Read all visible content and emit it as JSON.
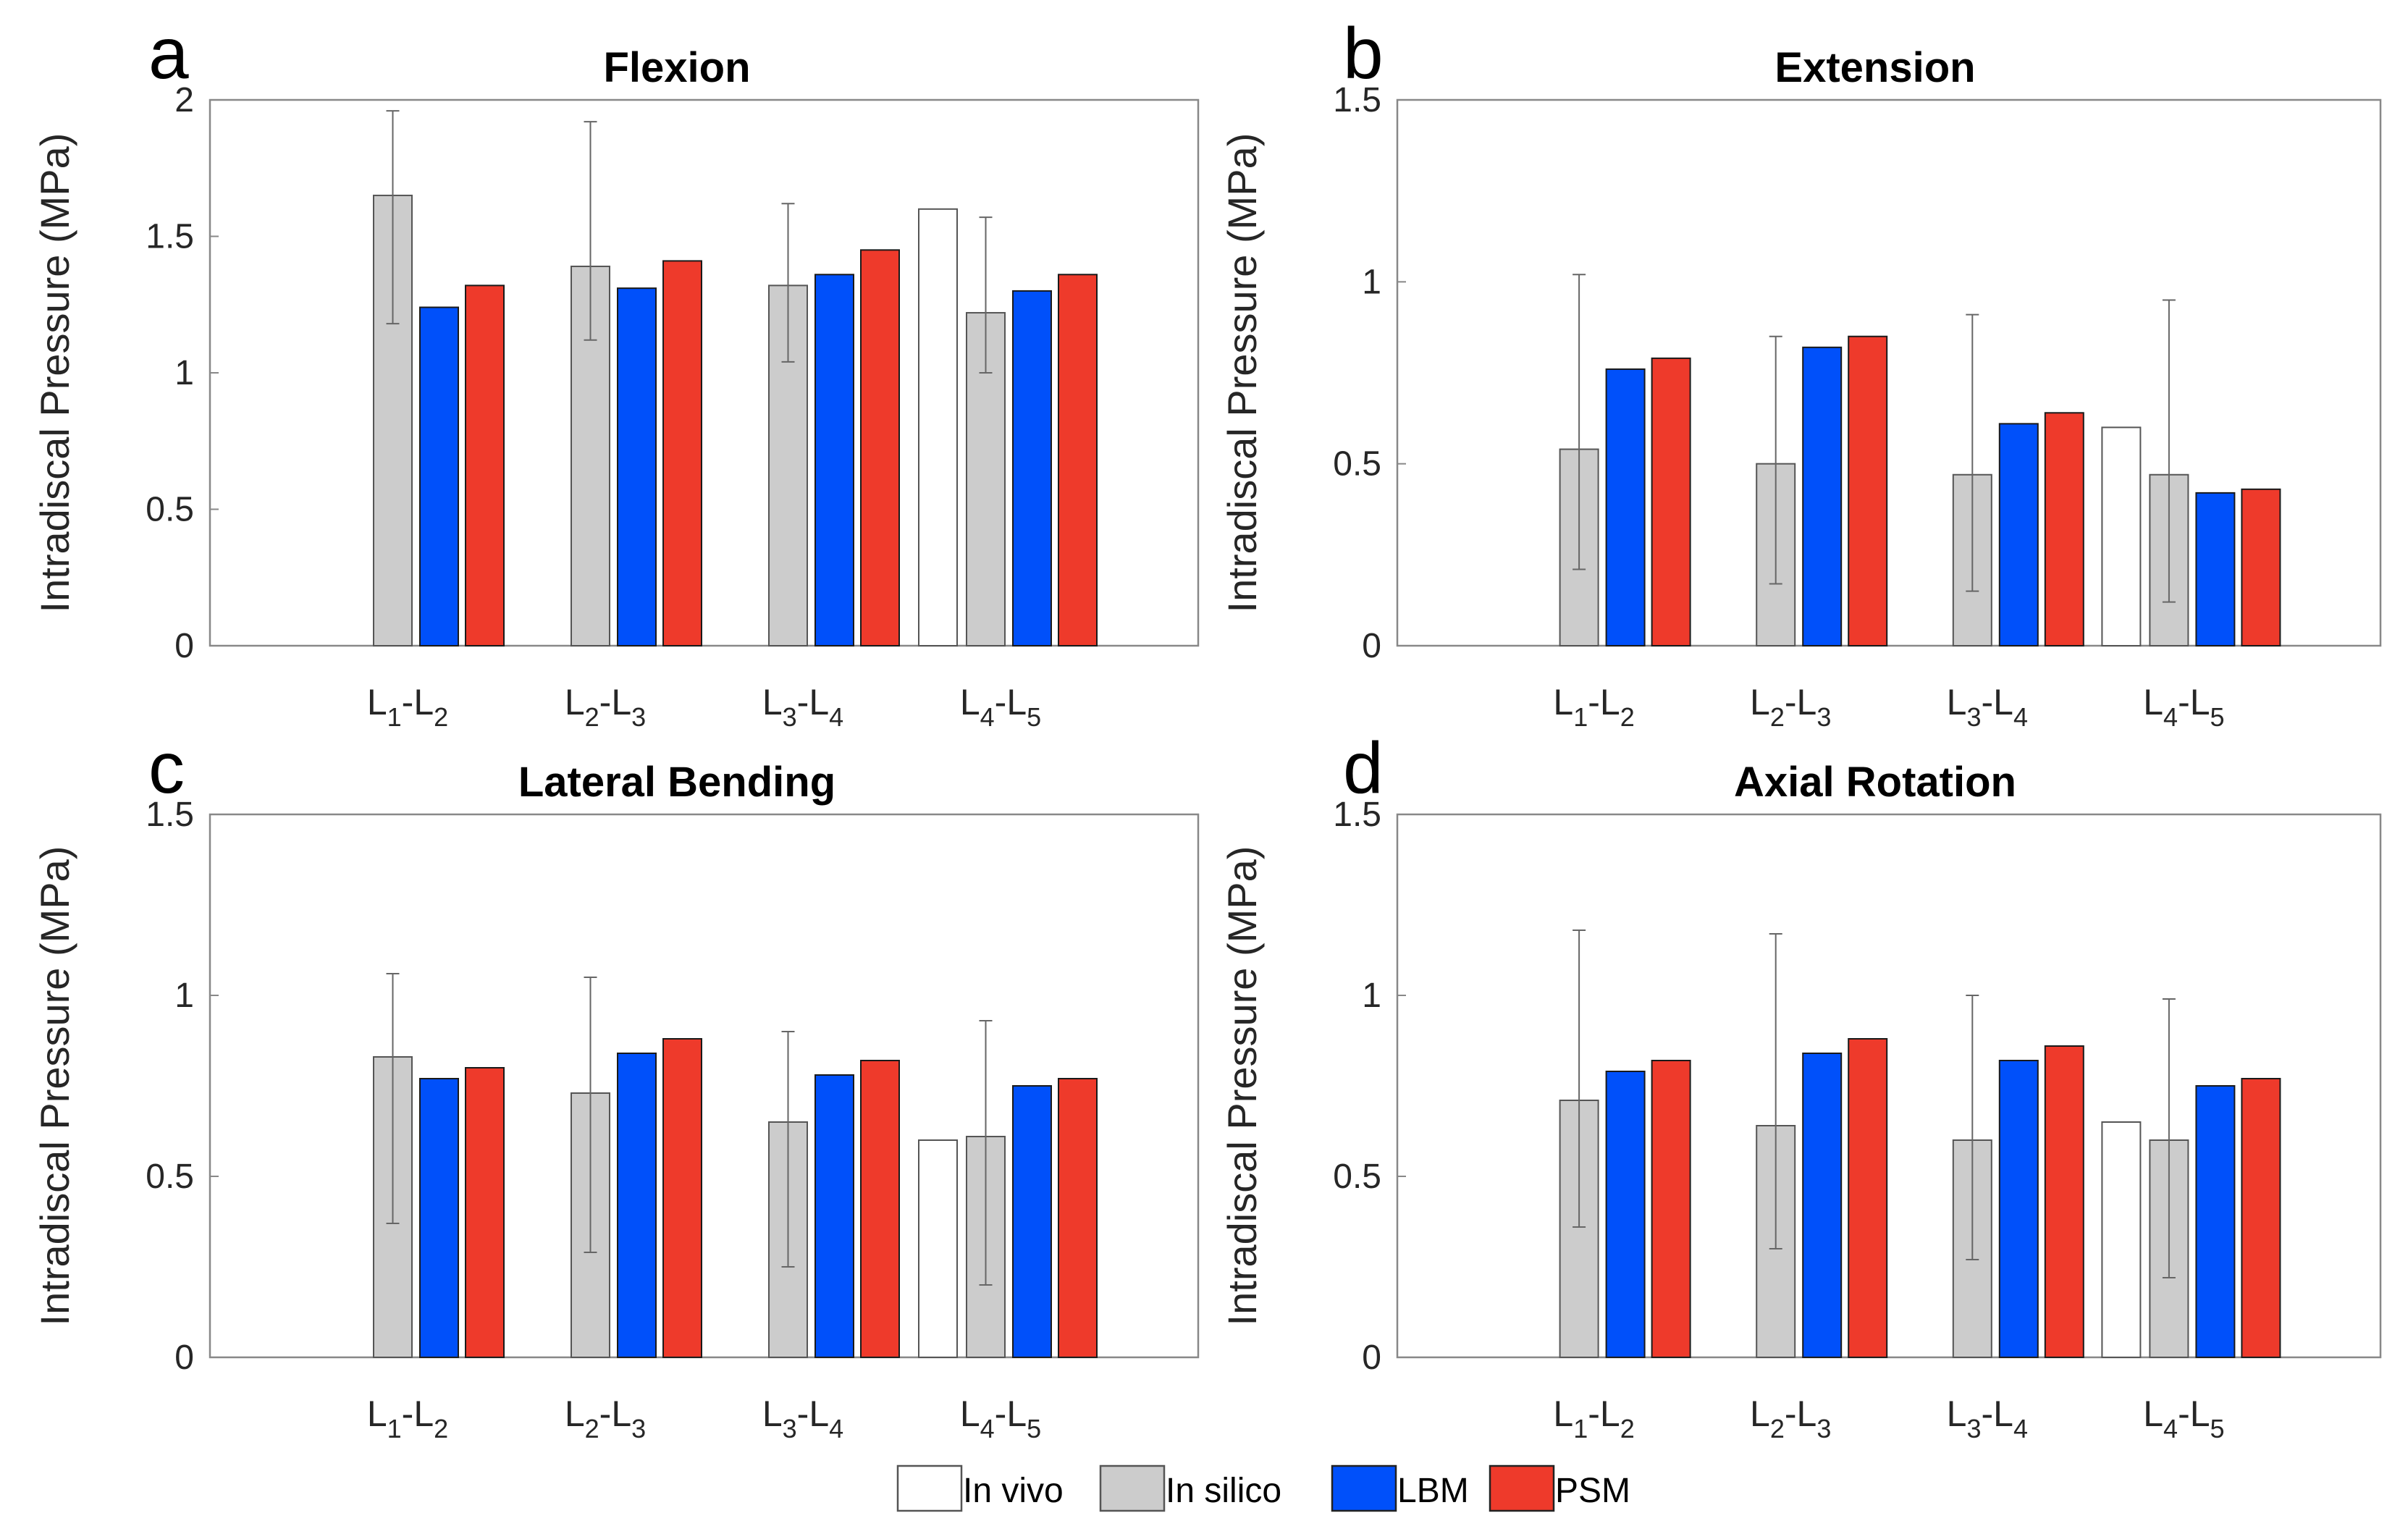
{
  "figure": {
    "ylabel": "Intradiscal Pressure (MPa)"
  },
  "legend": [
    {
      "name": "In vivo",
      "color": "#ffffff"
    },
    {
      "name": "In silico",
      "color": "#cccccc"
    },
    {
      "name": "LBM",
      "color": "#0050fa"
    },
    {
      "name": "PSM",
      "color": "#ee3a2b"
    }
  ],
  "chart_data": [
    {
      "panel_label": "a",
      "type": "bar",
      "title": "Flexion",
      "ylabel": "Intradiscal Pressure (MPa)",
      "ylim": [
        0,
        2
      ],
      "yticks": [
        0,
        0.5,
        1,
        1.5,
        2
      ],
      "ytick_labels": [
        "0",
        "0.5",
        "1",
        "1.5",
        "2"
      ],
      "categories": [
        {
          "letter": "L",
          "sub1": "1",
          "sep": "-",
          "sub2": "2"
        },
        {
          "letter": "L",
          "sub1": "2",
          "sep": "-",
          "sub2": "3"
        },
        {
          "letter": "L",
          "sub1": "3",
          "sep": "-",
          "sub2": "4"
        },
        {
          "letter": "L",
          "sub1": "4",
          "sep": "-",
          "sub2": "5"
        }
      ],
      "series": [
        {
          "name": "In vivo",
          "values": [
            null,
            null,
            null,
            1.6
          ]
        },
        {
          "name": "In silico",
          "values": [
            1.65,
            1.39,
            1.32,
            1.22
          ],
          "error_high": [
            1.96,
            1.92,
            1.62,
            1.57
          ],
          "error_low": [
            1.18,
            1.12,
            1.04,
            1.0
          ]
        },
        {
          "name": "LBM",
          "values": [
            1.24,
            1.31,
            1.36,
            1.3
          ]
        },
        {
          "name": "PSM",
          "values": [
            1.32,
            1.41,
            1.45,
            1.36
          ]
        }
      ]
    },
    {
      "panel_label": "b",
      "type": "bar",
      "title": "Extension",
      "ylabel": "Intradiscal Pressure (MPa)",
      "ylim": [
        0,
        1.5
      ],
      "yticks": [
        0,
        0.5,
        1,
        1.5
      ],
      "ytick_labels": [
        "0",
        "0.5",
        "1",
        "1.5"
      ],
      "categories": [
        {
          "letter": "L",
          "sub1": "1",
          "sep": "-",
          "sub2": "2"
        },
        {
          "letter": "L",
          "sub1": "2",
          "sep": "-",
          "sub2": "3"
        },
        {
          "letter": "L",
          "sub1": "3",
          "sep": "-",
          "sub2": "4"
        },
        {
          "letter": "L",
          "sub1": "4",
          "sep": "-",
          "sub2": "5"
        }
      ],
      "series": [
        {
          "name": "In vivo",
          "values": [
            null,
            null,
            null,
            0.6
          ]
        },
        {
          "name": "In silico",
          "values": [
            0.54,
            0.5,
            0.47,
            0.47
          ],
          "error_high": [
            1.02,
            0.85,
            0.91,
            0.95
          ],
          "error_low": [
            0.21,
            0.17,
            0.15,
            0.12
          ]
        },
        {
          "name": "LBM",
          "values": [
            0.76,
            0.82,
            0.61,
            0.42
          ]
        },
        {
          "name": "PSM",
          "values": [
            0.79,
            0.85,
            0.64,
            0.43
          ]
        }
      ]
    },
    {
      "panel_label": "c",
      "type": "bar",
      "title": "Lateral Bending",
      "ylabel": "Intradiscal Pressure (MPa)",
      "ylim": [
        0,
        1.5
      ],
      "yticks": [
        0,
        0.5,
        1,
        1.5
      ],
      "ytick_labels": [
        "0",
        "0.5",
        "1",
        "1.5"
      ],
      "categories": [
        {
          "letter": "L",
          "sub1": "1",
          "sep": "-",
          "sub2": "2"
        },
        {
          "letter": "L",
          "sub1": "2",
          "sep": "-",
          "sub2": "3"
        },
        {
          "letter": "L",
          "sub1": "3",
          "sep": "-",
          "sub2": "4"
        },
        {
          "letter": "L",
          "sub1": "4",
          "sep": "-",
          "sub2": "5"
        }
      ],
      "series": [
        {
          "name": "In vivo",
          "values": [
            null,
            null,
            null,
            0.6
          ]
        },
        {
          "name": "In silico",
          "values": [
            0.83,
            0.73,
            0.65,
            0.61
          ],
          "error_high": [
            1.06,
            1.05,
            0.9,
            0.93
          ],
          "error_low": [
            0.37,
            0.29,
            0.25,
            0.2
          ]
        },
        {
          "name": "LBM",
          "values": [
            0.77,
            0.84,
            0.78,
            0.75
          ]
        },
        {
          "name": "PSM",
          "values": [
            0.8,
            0.88,
            0.82,
            0.77
          ]
        }
      ]
    },
    {
      "panel_label": "d",
      "type": "bar",
      "title": "Axial Rotation",
      "ylabel": "Intradiscal Pressure (MPa)",
      "ylim": [
        0,
        1.5
      ],
      "yticks": [
        0,
        0.5,
        1,
        1.5
      ],
      "ytick_labels": [
        "0",
        "0.5",
        "1",
        "1.5"
      ],
      "categories": [
        {
          "letter": "L",
          "sub1": "1",
          "sep": "-",
          "sub2": "2"
        },
        {
          "letter": "L",
          "sub1": "2",
          "sep": "-",
          "sub2": "3"
        },
        {
          "letter": "L",
          "sub1": "3",
          "sep": "-",
          "sub2": "4"
        },
        {
          "letter": "L",
          "sub1": "4",
          "sep": "-",
          "sub2": "5"
        }
      ],
      "series": [
        {
          "name": "In vivo",
          "values": [
            null,
            null,
            null,
            0.65
          ]
        },
        {
          "name": "In silico",
          "values": [
            0.71,
            0.64,
            0.6,
            0.6
          ],
          "error_high": [
            1.18,
            1.17,
            1.0,
            0.99
          ],
          "error_low": [
            0.36,
            0.3,
            0.27,
            0.22
          ]
        },
        {
          "name": "LBM",
          "values": [
            0.79,
            0.84,
            0.82,
            0.75
          ]
        },
        {
          "name": "PSM",
          "values": [
            0.82,
            0.88,
            0.86,
            0.77
          ]
        }
      ]
    }
  ]
}
